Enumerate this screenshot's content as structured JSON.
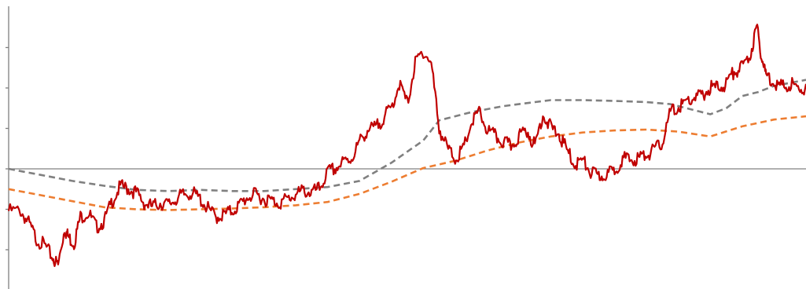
{
  "chart_data": {
    "type": "line",
    "title": "",
    "xlabel": "",
    "ylabel": "",
    "grid": false,
    "legend": "none",
    "x_range": [
      0,
      100
    ],
    "ylim": [
      -3,
      4
    ],
    "y_ticks": [
      -2,
      -1,
      0,
      1,
      2,
      3
    ],
    "zero_line": 0,
    "series": [
      {
        "color": "#C00000",
        "style": "solid",
        "points": [
          [
            0,
            -0.95
          ],
          [
            1.5,
            -0.95
          ],
          [
            2.5,
            -1.25
          ],
          [
            3.5,
            -1.65
          ],
          [
            4.5,
            -1.8
          ],
          [
            5.5,
            -2.1
          ],
          [
            6.2,
            -2.3
          ],
          [
            7,
            -1.4
          ],
          [
            7.5,
            -1.6
          ],
          [
            8.2,
            -1.75
          ],
          [
            9,
            -1.1
          ],
          [
            10,
            -1.0
          ],
          [
            11,
            -1.35
          ],
          [
            12,
            -1.2
          ],
          [
            13,
            -0.7
          ],
          [
            14,
            -0.35
          ],
          [
            15,
            -0.4
          ],
          [
            16,
            -0.5
          ],
          [
            17,
            -0.75
          ],
          [
            18,
            -0.85
          ],
          [
            19,
            -0.75
          ],
          [
            20,
            -0.8
          ],
          [
            21,
            -0.65
          ],
          [
            22,
            -0.55
          ],
          [
            23,
            -0.5
          ],
          [
            24,
            -0.65
          ],
          [
            25,
            -0.9
          ],
          [
            26,
            -1.1
          ],
          [
            27,
            -1.05
          ],
          [
            28,
            -0.95
          ],
          [
            29,
            -0.8
          ],
          [
            30,
            -0.6
          ],
          [
            31,
            -0.55
          ],
          [
            32,
            -0.65
          ],
          [
            33,
            -0.7
          ],
          [
            34,
            -0.75
          ],
          [
            35,
            -0.65
          ],
          [
            36,
            -0.55
          ],
          [
            37,
            -0.45
          ],
          [
            38,
            -0.5
          ],
          [
            39,
            -0.4
          ],
          [
            40,
            0.0
          ],
          [
            41,
            0.1
          ],
          [
            42,
            0.25
          ],
          [
            43,
            0.35
          ],
          [
            44,
            0.75
          ],
          [
            45,
            1.05
          ],
          [
            46,
            1.1
          ],
          [
            47,
            1.35
          ],
          [
            48,
            1.6
          ],
          [
            49,
            2.2
          ],
          [
            50,
            1.7
          ],
          [
            51,
            2.7
          ],
          [
            52,
            3.0
          ],
          [
            53,
            2.7
          ],
          [
            54,
            1.1
          ],
          [
            55,
            0.6
          ],
          [
            56,
            0.35
          ],
          [
            57,
            0.55
          ],
          [
            58,
            1.2
          ],
          [
            59,
            1.5
          ],
          [
            60,
            1.05
          ],
          [
            61,
            0.9
          ],
          [
            62,
            0.75
          ],
          [
            63,
            0.65
          ],
          [
            64,
            0.9
          ],
          [
            65,
            1.05
          ],
          [
            66,
            0.65
          ],
          [
            67,
            1.45
          ],
          [
            68,
            1.1
          ],
          [
            69,
            0.95
          ],
          [
            70,
            0.55
          ],
          [
            71,
            0.2
          ],
          [
            72,
            0.3
          ],
          [
            73,
            0.0
          ],
          [
            74,
            -0.1
          ],
          [
            75,
            -0.05
          ],
          [
            76,
            0.05
          ],
          [
            77,
            0.35
          ],
          [
            78,
            0.3
          ],
          [
            79,
            0.35
          ],
          [
            80,
            0.45
          ],
          [
            81,
            0.55
          ],
          [
            82,
            0.75
          ],
          [
            83,
            1.5
          ],
          [
            84,
            1.6
          ],
          [
            85,
            1.75
          ],
          [
            86,
            1.85
          ],
          [
            87,
            1.9
          ],
          [
            88,
            2.1
          ],
          [
            89,
            2.1
          ],
          [
            90,
            2.2
          ],
          [
            91,
            2.5
          ],
          [
            92,
            2.6
          ],
          [
            93,
            2.9
          ],
          [
            93.8,
            3.6
          ],
          [
            94.5,
            2.8
          ],
          [
            95,
            2.4
          ],
          [
            96,
            2.25
          ],
          [
            97,
            2.1
          ],
          [
            98,
            2.2
          ],
          [
            99,
            2.05
          ],
          [
            100,
            2.1
          ]
        ]
      },
      {
        "color": "#808080",
        "style": "dashed",
        "points": [
          [
            0,
            0.0
          ],
          [
            4,
            -0.15
          ],
          [
            8,
            -0.3
          ],
          [
            12,
            -0.42
          ],
          [
            16,
            -0.52
          ],
          [
            20,
            -0.55
          ],
          [
            24,
            -0.52
          ],
          [
            28,
            -0.55
          ],
          [
            32,
            -0.55
          ],
          [
            36,
            -0.5
          ],
          [
            40,
            -0.45
          ],
          [
            44,
            -0.3
          ],
          [
            48,
            0.15
          ],
          [
            52,
            0.7
          ],
          [
            54,
            1.2
          ],
          [
            58,
            1.4
          ],
          [
            62,
            1.55
          ],
          [
            66,
            1.65
          ],
          [
            68,
            1.7
          ],
          [
            72,
            1.7
          ],
          [
            76,
            1.68
          ],
          [
            80,
            1.65
          ],
          [
            83,
            1.6
          ],
          [
            86,
            1.45
          ],
          [
            88,
            1.35
          ],
          [
            90,
            1.5
          ],
          [
            92,
            1.8
          ],
          [
            94,
            1.9
          ],
          [
            96,
            2.05
          ],
          [
            100,
            2.2
          ]
        ]
      },
      {
        "color": "#ED7D31",
        "style": "dashed",
        "points": [
          [
            0,
            -0.5
          ],
          [
            4,
            -0.65
          ],
          [
            8,
            -0.8
          ],
          [
            12,
            -0.95
          ],
          [
            16,
            -1.0
          ],
          [
            20,
            -1.02
          ],
          [
            24,
            -1.0
          ],
          [
            28,
            -0.98
          ],
          [
            32,
            -0.95
          ],
          [
            36,
            -0.9
          ],
          [
            40,
            -0.82
          ],
          [
            44,
            -0.62
          ],
          [
            48,
            -0.32
          ],
          [
            52,
            0.02
          ],
          [
            56,
            0.2
          ],
          [
            60,
            0.45
          ],
          [
            64,
            0.65
          ],
          [
            68,
            0.8
          ],
          [
            72,
            0.9
          ],
          [
            76,
            0.95
          ],
          [
            80,
            0.97
          ],
          [
            84,
            0.92
          ],
          [
            88,
            0.8
          ],
          [
            92,
            1.05
          ],
          [
            96,
            1.22
          ],
          [
            100,
            1.3
          ]
        ]
      }
    ]
  }
}
